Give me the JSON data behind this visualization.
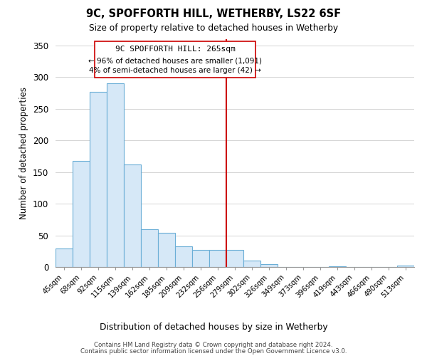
{
  "title": "9C, SPOFFORTH HILL, WETHERBY, LS22 6SF",
  "subtitle": "Size of property relative to detached houses in Wetherby",
  "xlabel": "Distribution of detached houses by size in Wetherby",
  "ylabel": "Number of detached properties",
  "bar_labels": [
    "45sqm",
    "68sqm",
    "92sqm",
    "115sqm",
    "139sqm",
    "162sqm",
    "185sqm",
    "209sqm",
    "232sqm",
    "256sqm",
    "279sqm",
    "302sqm",
    "326sqm",
    "349sqm",
    "373sqm",
    "396sqm",
    "419sqm",
    "443sqm",
    "466sqm",
    "490sqm",
    "513sqm"
  ],
  "bar_values": [
    29,
    168,
    277,
    290,
    162,
    60,
    54,
    33,
    27,
    27,
    27,
    10,
    5,
    0,
    0,
    0,
    1,
    0,
    0,
    0,
    2
  ],
  "bar_color": "#d6e8f7",
  "bar_edge_color": "#6aaed6",
  "ylim": [
    0,
    360
  ],
  "yticks": [
    0,
    50,
    100,
    150,
    200,
    250,
    300,
    350
  ],
  "property_label": "9C SPOFFORTH HILL: 265sqm",
  "annotation_line1": "← 96% of detached houses are smaller (1,091)",
  "annotation_line2": "4% of semi-detached houses are larger (42) →",
  "vline_color": "#cc0000",
  "footnote1": "Contains HM Land Registry data © Crown copyright and database right 2024.",
  "footnote2": "Contains public sector information licensed under the Open Government Licence v3.0.",
  "background_color": "#ffffff",
  "grid_color": "#cccccc"
}
